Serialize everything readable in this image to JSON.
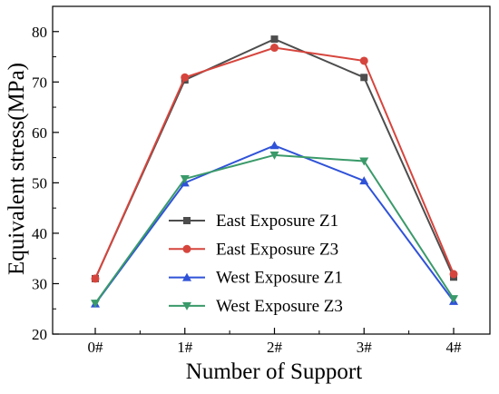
{
  "chart_data": {
    "type": "line",
    "xlabel": "Number of Support",
    "ylabel": "Equivalent stress(MPa)",
    "categories": [
      "0#",
      "1#",
      "2#",
      "3#",
      "4#"
    ],
    "ylim": [
      20,
      85
    ],
    "yticks": [
      20,
      30,
      40,
      50,
      60,
      70,
      80
    ],
    "grid": false,
    "legend_position": "lower-center",
    "series": [
      {
        "name": "East Exposure Z1",
        "values": [
          31.0,
          70.4,
          78.5,
          70.9,
          31.3
        ],
        "color": "#4d4d4d",
        "marker": "square"
      },
      {
        "name": "East Exposure Z3",
        "values": [
          31.0,
          70.9,
          76.8,
          74.2,
          31.9
        ],
        "color": "#d6453d",
        "marker": "circle"
      },
      {
        "name": "West Exposure Z1",
        "values": [
          26.0,
          50.0,
          57.4,
          50.4,
          26.5
        ],
        "color": "#2f52d8",
        "marker": "triangle-up"
      },
      {
        "name": "West Exposure Z3",
        "values": [
          26.1,
          50.8,
          55.5,
          54.3,
          27.0
        ],
        "color": "#3a9a6a",
        "marker": "triangle-down"
      }
    ]
  }
}
